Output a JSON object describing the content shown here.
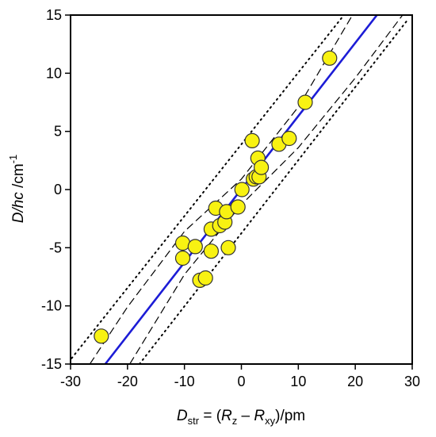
{
  "chart_data": {
    "type": "scatter",
    "xlim": [
      -30,
      30
    ],
    "ylim": [
      -15,
      15
    ],
    "x_ticks": [
      -30,
      -20,
      -10,
      0,
      10,
      20,
      30
    ],
    "y_ticks": [
      -15,
      -10,
      -5,
      0,
      5,
      10,
      15
    ],
    "xlabel": {
      "symbol": "D",
      "symbol_sub": "str",
      "eq": " = (",
      "r1": "R",
      "r1_sub": "z",
      "minus": " – ",
      "r2": "R",
      "r2_sub": "xy",
      "unit": ")/pm"
    },
    "ylabel": {
      "symbol": "D/hc",
      "unit": " /cm",
      "unit_sup": "-1"
    },
    "points": [
      {
        "x": -24.6,
        "y": -12.6
      },
      {
        "x": -10.3,
        "y": -4.6
      },
      {
        "x": -10.3,
        "y": -5.9
      },
      {
        "x": -8.1,
        "y": -4.9
      },
      {
        "x": -7.3,
        "y": -7.8
      },
      {
        "x": -6.3,
        "y": -7.6
      },
      {
        "x": -5.3,
        "y": -5.3
      },
      {
        "x": -5.3,
        "y": -3.4
      },
      {
        "x": -4.5,
        "y": -1.6
      },
      {
        "x": -3.8,
        "y": -3.1
      },
      {
        "x": -2.9,
        "y": -2.8
      },
      {
        "x": -2.6,
        "y": -1.9
      },
      {
        "x": -2.3,
        "y": -5.0
      },
      {
        "x": -0.6,
        "y": -1.5
      },
      {
        "x": 0.1,
        "y": 0.0
      },
      {
        "x": 1.9,
        "y": 4.2
      },
      {
        "x": 2.1,
        "y": 0.9
      },
      {
        "x": 2.6,
        "y": 1.1
      },
      {
        "x": 2.9,
        "y": 2.7
      },
      {
        "x": 3.1,
        "y": 1.1
      },
      {
        "x": 3.5,
        "y": 1.9
      },
      {
        "x": 6.6,
        "y": 3.9
      },
      {
        "x": 8.4,
        "y": 4.4
      },
      {
        "x": 11.2,
        "y": 7.5
      },
      {
        "x": 15.5,
        "y": 11.3
      }
    ],
    "fit_line": {
      "x": [
        -23.9,
        23.8
      ],
      "y": [
        -15,
        15
      ]
    },
    "confidence_band": {
      "upper_x": [
        -26.6,
        -20,
        -10,
        0,
        10,
        19.5
      ],
      "upper_y": [
        -15,
        -10.1,
        -3.6,
        0.9,
        7.1,
        15
      ],
      "lower_x": [
        -19.6,
        -10,
        0,
        10,
        20,
        28.3
      ],
      "lower_y": [
        -15,
        -7.3,
        -1.3,
        3.6,
        9.6,
        15
      ]
    },
    "prediction_band": {
      "upper_x": [
        -29.8,
        18.0
      ],
      "upper_y": [
        -14.5,
        15
      ],
      "lower_x": [
        -17.9,
        29.2
      ],
      "lower_y": [
        -15,
        14.6
      ]
    },
    "colors": {
      "point_fill": "#f8f212",
      "point_stroke": "#333333",
      "fit_line": "#1c1cd6",
      "band_lines": "#000000"
    }
  }
}
